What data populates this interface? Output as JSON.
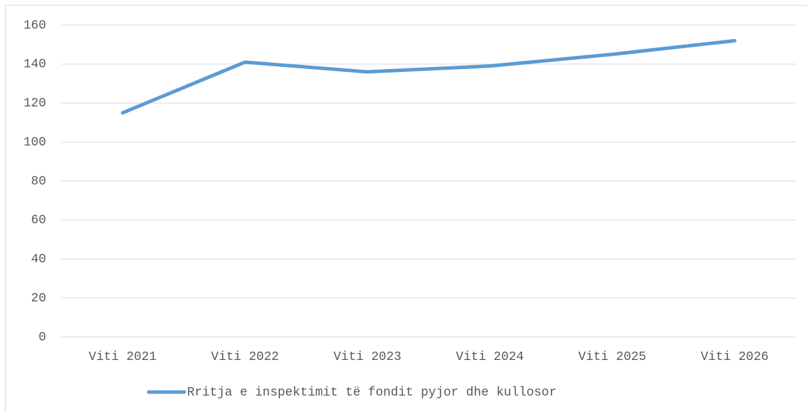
{
  "chart_data": {
    "type": "line",
    "categories": [
      "Viti 2021",
      "Viti 2022",
      "Viti 2023",
      "Viti 2024",
      "Viti 2025",
      "Viti 2026"
    ],
    "series": [
      {
        "name": "Rritja e inspektimit të fondit pyjor dhe kullosor",
        "color": "#5b9bd5",
        "values": [
          115,
          141,
          136,
          139,
          145,
          152
        ]
      }
    ],
    "ylim": [
      0,
      160
    ],
    "yticks": [
      0,
      20,
      40,
      60,
      80,
      100,
      120,
      140,
      160
    ],
    "grid": true,
    "legend": "bottom"
  }
}
